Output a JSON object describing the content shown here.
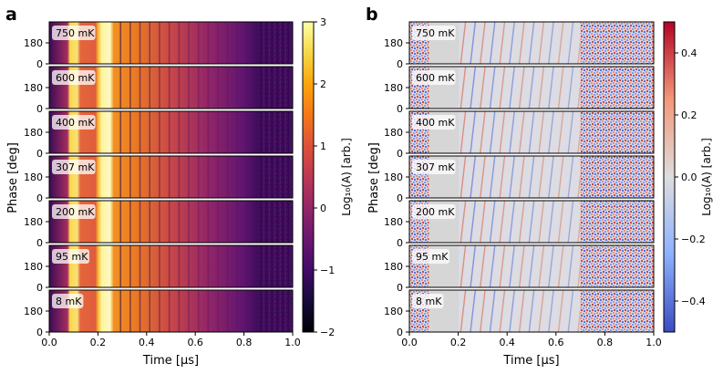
{
  "figure": {
    "panel_a_label": "a",
    "panel_b_label": "b"
  },
  "chart_data": [
    {
      "panel": "a",
      "type": "heatmap",
      "xlabel": "Time [μs]",
      "ylabel": "Phase [deg]",
      "xlim": [
        0,
        1.0
      ],
      "xticks": [
        "0.0",
        "0.2",
        "0.4",
        "0.6",
        "0.8",
        "1.0"
      ],
      "ylim": [
        0,
        360
      ],
      "yticks": [
        "0",
        "180"
      ],
      "subplot_labels": [
        "750 mK",
        "600 mK",
        "400 mK",
        "307 mK",
        "200 mK",
        "95 mK",
        "8 mK"
      ],
      "colorbar": {
        "label": "Log₁₀(A) [arb.]",
        "range": [
          -2,
          3
        ],
        "ticks": [
          "3",
          "2",
          "1",
          "0",
          "−1",
          "−2"
        ],
        "colormap": "inferno"
      },
      "features": {
        "bright_bands_us": [
          [
            0.08,
            0.12
          ],
          [
            0.2,
            0.26
          ]
        ],
        "quiet_gap_us": [
          0.13,
          0.19
        ],
        "fringe_spacing_us": 0.04,
        "decay_to_background_us": 0.85
      }
    },
    {
      "panel": "b",
      "type": "heatmap",
      "xlabel": "Time [μs]",
      "ylabel": "Phase [deg]",
      "xlim": [
        0,
        1.0
      ],
      "xticks": [
        "0.0",
        "0.2",
        "0.4",
        "0.6",
        "0.8",
        "1.0"
      ],
      "ylim": [
        0,
        360
      ],
      "yticks": [
        "0",
        "180"
      ],
      "subplot_labels": [
        "750 mK",
        "600 mK",
        "400 mK",
        "307 mK",
        "200 mK",
        "95 mK",
        "8 mK"
      ],
      "colorbar": {
        "label": "Log₁₀(A) [arb.]",
        "range": [
          -0.5,
          0.5
        ],
        "ticks": [
          "0.4",
          "0.2",
          "0.0",
          "−0.2",
          "−0.4"
        ],
        "colormap": "coolwarm"
      },
      "features": {
        "masked_region_us": [
          0.08,
          0.2
        ],
        "noise_onset_us": 0.7
      }
    }
  ]
}
